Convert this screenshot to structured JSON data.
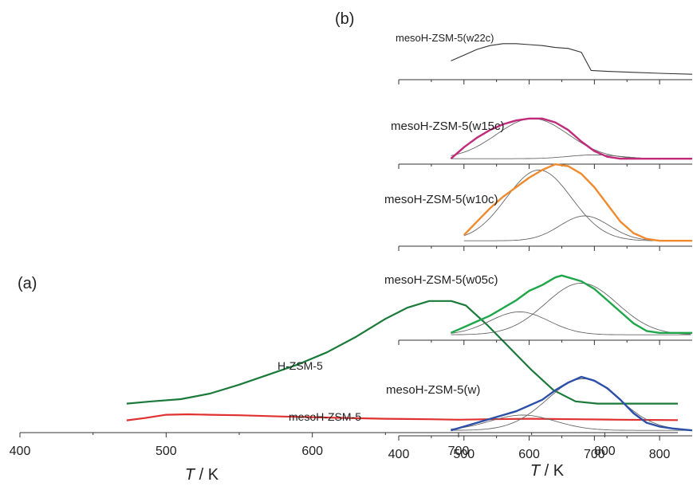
{
  "chart_data": [
    {
      "type": "line",
      "panel": "(a)",
      "xlabel": "T / K",
      "xlim": [
        400,
        850
      ],
      "x_ticks": [
        400,
        500,
        600,
        700,
        800
      ],
      "grid": false,
      "series": [
        {
          "name": "H-ZSM-5",
          "color": "#1a7a3a",
          "points": [
            [
              473,
              0.08
            ],
            [
              490,
              0.09
            ],
            [
              510,
              0.1
            ],
            [
              530,
              0.125
            ],
            [
              550,
              0.165
            ],
            [
              570,
              0.21
            ],
            [
              590,
              0.255
            ],
            [
              610,
              0.31
            ],
            [
              630,
              0.38
            ],
            [
              650,
              0.46
            ],
            [
              665,
              0.51
            ],
            [
              680,
              0.54
            ],
            [
              695,
              0.54
            ],
            [
              705,
              0.52
            ],
            [
              720,
              0.43
            ],
            [
              735,
              0.33
            ],
            [
              750,
              0.23
            ],
            [
              765,
              0.14
            ],
            [
              780,
              0.09
            ],
            [
              795,
              0.08
            ],
            [
              820,
              0.08
            ],
            [
              850,
              0.08
            ]
          ]
        },
        {
          "name": "mesoH-ZSM-5",
          "color": "#e03030",
          "points": [
            [
              473,
              0.005
            ],
            [
              485,
              0.015
            ],
            [
              500,
              0.03
            ],
            [
              515,
              0.032
            ],
            [
              530,
              0.03
            ],
            [
              550,
              0.028
            ],
            [
              580,
              0.022
            ],
            [
              620,
              0.016
            ],
            [
              650,
              0.012
            ],
            [
              680,
              0.01
            ],
            [
              700,
              0.008
            ],
            [
              720,
              0.01
            ],
            [
              750,
              0.012
            ],
            [
              780,
              0.01
            ],
            [
              810,
              0.008
            ],
            [
              850,
              0.006
            ]
          ]
        }
      ]
    },
    {
      "type": "line",
      "panel": "(b)",
      "xlabel": "T / K",
      "xlim": [
        400,
        850
      ],
      "x_ticks": [
        400,
        500,
        600,
        700,
        800
      ],
      "grid": false,
      "series": [
        {
          "name": "mesoH-ZSM-5(w22c)",
          "color": "#333333",
          "points": [
            [
              480,
              0.09
            ],
            [
              500,
              0.12
            ],
            [
              520,
              0.15
            ],
            [
              540,
              0.17
            ],
            [
              560,
              0.18
            ],
            [
              580,
              0.18
            ],
            [
              600,
              0.175
            ],
            [
              620,
              0.17
            ],
            [
              640,
              0.16
            ],
            [
              660,
              0.155
            ],
            [
              680,
              0.135
            ],
            [
              695,
              0.04
            ],
            [
              720,
              0.035
            ],
            [
              760,
              0.03
            ],
            [
              800,
              0.025
            ],
            [
              850,
              0.02
            ]
          ],
          "components": []
        },
        {
          "name": "mesoH-ZSM-5(w15c)",
          "color": "#c02a78",
          "points": [
            [
              480,
              0.02
            ],
            [
              500,
              0.08
            ],
            [
              520,
              0.13
            ],
            [
              540,
              0.17
            ],
            [
              560,
              0.2
            ],
            [
              580,
              0.22
            ],
            [
              600,
              0.23
            ],
            [
              620,
              0.23
            ],
            [
              640,
              0.21
            ],
            [
              660,
              0.17
            ],
            [
              680,
              0.11
            ],
            [
              700,
              0.06
            ],
            [
              720,
              0.03
            ],
            [
              740,
              0.02
            ],
            [
              780,
              0.02
            ],
            [
              850,
              0.02
            ]
          ],
          "components": [
            {
              "center": 605,
              "width": 55,
              "height": 0.21,
              "base": 0.02
            },
            {
              "center": 700,
              "width": 40,
              "height": 0.02,
              "base": 0.02
            }
          ]
        },
        {
          "name": "mesoH-ZSM-5(w10c)",
          "color": "#ef8a2e",
          "points": [
            [
              500,
              0.05
            ],
            [
              520,
              0.12
            ],
            [
              540,
              0.19
            ],
            [
              560,
              0.25
            ],
            [
              580,
              0.3
            ],
            [
              600,
              0.35
            ],
            [
              620,
              0.39
            ],
            [
              640,
              0.42
            ],
            [
              660,
              0.41
            ],
            [
              680,
              0.37
            ],
            [
              700,
              0.3
            ],
            [
              720,
              0.21
            ],
            [
              740,
              0.12
            ],
            [
              760,
              0.06
            ],
            [
              780,
              0.03
            ],
            [
              800,
              0.02
            ],
            [
              850,
              0.02
            ]
          ],
          "components": [
            {
              "center": 615,
              "width": 50,
              "height": 0.37,
              "base": 0.02
            },
            {
              "center": 685,
              "width": 38,
              "height": 0.13,
              "base": 0.02
            }
          ]
        },
        {
          "name": "mesoH-ZSM-5(w05c)",
          "color": "#1fa64a",
          "points": [
            [
              480,
              0.03
            ],
            [
              500,
              0.06
            ],
            [
              520,
              0.09
            ],
            [
              540,
              0.12
            ],
            [
              560,
              0.16
            ],
            [
              580,
              0.2
            ],
            [
              600,
              0.25
            ],
            [
              620,
              0.28
            ],
            [
              640,
              0.32
            ],
            [
              650,
              0.33
            ],
            [
              660,
              0.32
            ],
            [
              680,
              0.3
            ],
            [
              700,
              0.26
            ],
            [
              720,
              0.2
            ],
            [
              740,
              0.14
            ],
            [
              760,
              0.08
            ],
            [
              780,
              0.04
            ],
            [
              800,
              0.03
            ],
            [
              850,
              0.03
            ]
          ],
          "components": [
            {
              "center": 585,
              "width": 45,
              "height": 0.12,
              "base": 0.02
            },
            {
              "center": 680,
              "width": 55,
              "height": 0.27,
              "base": 0.02
            }
          ]
        },
        {
          "name": "mesoH-ZSM-5(w)",
          "color": "#2c4fa8",
          "points": [
            [
              480,
              0.02
            ],
            [
              500,
              0.04
            ],
            [
              520,
              0.06
            ],
            [
              540,
              0.08
            ],
            [
              560,
              0.1
            ],
            [
              580,
              0.12
            ],
            [
              600,
              0.15
            ],
            [
              620,
              0.18
            ],
            [
              640,
              0.23
            ],
            [
              660,
              0.27
            ],
            [
              680,
              0.3
            ],
            [
              700,
              0.28
            ],
            [
              720,
              0.24
            ],
            [
              740,
              0.18
            ],
            [
              760,
              0.11
            ],
            [
              780,
              0.06
            ],
            [
              800,
              0.04
            ],
            [
              820,
              0.03
            ],
            [
              850,
              0.02
            ]
          ],
          "components": [
            {
              "center": 590,
              "width": 50,
              "height": 0.08,
              "base": 0.02
            },
            {
              "center": 683,
              "width": 55,
              "height": 0.27,
              "base": 0.02
            }
          ]
        }
      ]
    }
  ]
}
